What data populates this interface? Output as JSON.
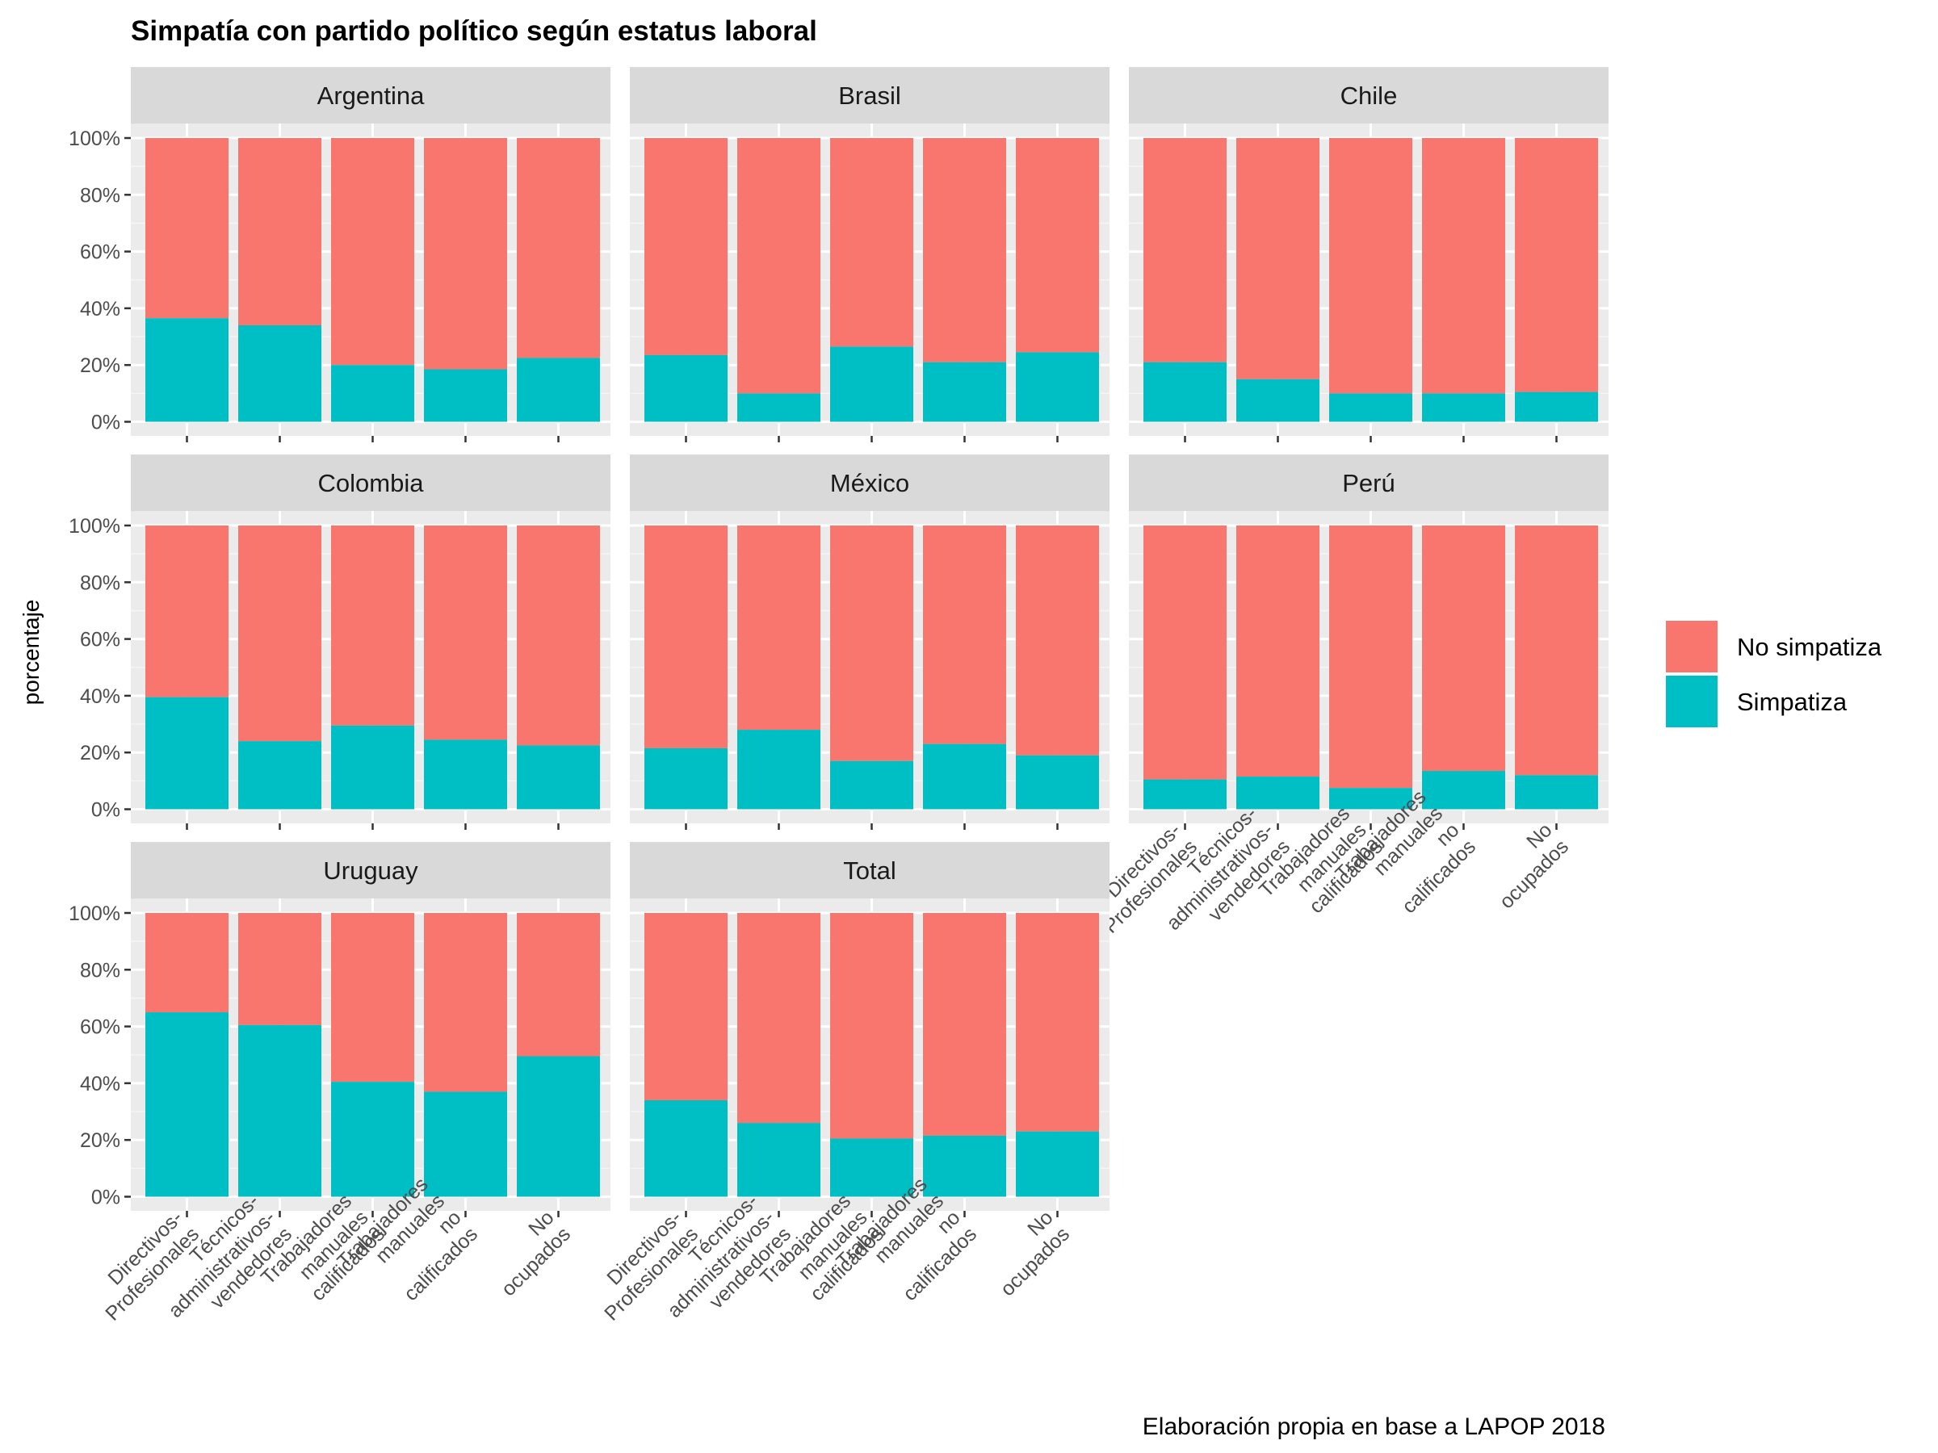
{
  "chart_data": {
    "type": "bar",
    "stacked": true,
    "title": "Simpatía con partido político según estatus laboral",
    "caption": "Elaboración propia en base a LAPOP 2018",
    "ylabel": "porcentaje",
    "xlabel": "",
    "ylim": [
      0,
      100
    ],
    "y_ticks": [
      "0%",
      "20%",
      "40%",
      "60%",
      "80%",
      "100%"
    ],
    "grid": true,
    "legend_position": "right",
    "categories": [
      [
        "Directivos-",
        "Profesionales"
      ],
      [
        "Técnicos-",
        "administrativos-",
        "vendedores"
      ],
      [
        "Trabajadores",
        "manuales",
        "calificados"
      ],
      [
        "Trabajadores",
        "manuales",
        "no",
        "calificados"
      ],
      [
        "No",
        "ocupados"
      ]
    ],
    "series": [
      {
        "name": "No simpatiza",
        "color": "#F8766D"
      },
      {
        "name": "Simpatiza",
        "color": "#00BFC4"
      }
    ],
    "panels": [
      {
        "name": "Argentina",
        "simpatiza": [
          36.5,
          34,
          20,
          18.5,
          22.5
        ]
      },
      {
        "name": "Brasil",
        "simpatiza": [
          23.5,
          10,
          26.5,
          21,
          24.5
        ]
      },
      {
        "name": "Chile",
        "simpatiza": [
          21,
          15,
          10,
          10,
          10.5
        ]
      },
      {
        "name": "Colombia",
        "simpatiza": [
          39.5,
          24,
          29.5,
          24.5,
          22.5
        ]
      },
      {
        "name": "México",
        "simpatiza": [
          21.5,
          28,
          17,
          23,
          19
        ]
      },
      {
        "name": "Perú",
        "simpatiza": [
          10.5,
          11.5,
          7.5,
          13.5,
          12
        ]
      },
      {
        "name": "Uruguay",
        "simpatiza": [
          65,
          60.5,
          40.5,
          37,
          49.5
        ]
      },
      {
        "name": "Total",
        "simpatiza": [
          34,
          26,
          20.5,
          21.5,
          23
        ]
      }
    ]
  }
}
